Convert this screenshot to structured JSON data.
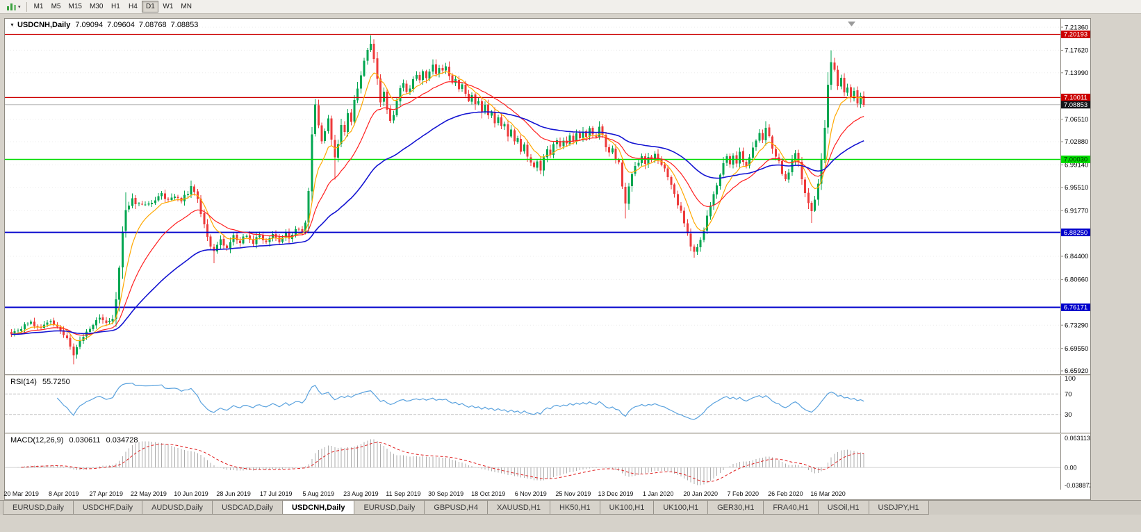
{
  "icons": {
    "collapse_arrow": "▼",
    "dropdown_arrow": "▾"
  },
  "toolbar": {
    "buttons": [
      {
        "label": "M1",
        "active": false
      },
      {
        "label": "M5",
        "active": false
      },
      {
        "label": "M15",
        "active": false
      },
      {
        "label": "M30",
        "active": false
      },
      {
        "label": "H1",
        "active": false
      },
      {
        "label": "H4",
        "active": false
      },
      {
        "label": "D1",
        "active": true
      },
      {
        "label": "W1",
        "active": false
      },
      {
        "label": "MN",
        "active": false
      }
    ]
  },
  "chart_header": {
    "title": "USDCNH,Daily",
    "open": "7.09094",
    "high": "7.09604",
    "low": "7.08768",
    "close": "7.08853"
  },
  "price_axis": {
    "ticks": [
      "7.21360",
      "7.17620",
      "7.13990",
      "7.06510",
      "7.02880",
      "6.99140",
      "6.95510",
      "6.91770",
      "6.84400",
      "6.80660",
      "6.73290",
      "6.69550",
      "6.65920"
    ],
    "badges": [
      {
        "text": "7.20193",
        "bg": "#cc0000",
        "fg": "#ffffff"
      },
      {
        "text": "7.10011",
        "bg": "#cc0000",
        "fg": "#ffffff"
      },
      {
        "text": "7.08853",
        "bg": "#15151a",
        "fg": "#ffffff"
      },
      {
        "text": "7.00030",
        "bg": "#00dc00",
        "fg": "#003300"
      },
      {
        "text": "6.88250",
        "bg": "#0000cc",
        "fg": "#ffffff"
      },
      {
        "text": "6.76171",
        "bg": "#0000cc",
        "fg": "#ffffff"
      }
    ]
  },
  "rsi": {
    "label": "RSI(14)",
    "value": "55.7250",
    "axis": [
      {
        "text": "100",
        "value": 100
      },
      {
        "text": "70",
        "value": 70
      },
      {
        "text": "30",
        "value": 30
      }
    ]
  },
  "macd": {
    "label": "MACD(12,26,9)",
    "value1": "0.030611",
    "value2": "0.034728",
    "axis": [
      {
        "text": "0.063113",
        "value": 0.063113
      },
      {
        "text": "0.00",
        "value": 0
      },
      {
        "text": "-0.038872",
        "value": -0.038872
      }
    ]
  },
  "tabs": [
    {
      "label": "EURUSD,Daily",
      "active": false
    },
    {
      "label": "USDCHF,Daily",
      "active": false
    },
    {
      "label": "AUDUSD,Daily",
      "active": false
    },
    {
      "label": "USDCAD,Daily",
      "active": false
    },
    {
      "label": "USDCNH,Daily",
      "active": true
    },
    {
      "label": "EURUSD,Daily",
      "active": false
    },
    {
      "label": "GBPUSD,H4",
      "active": false
    },
    {
      "label": "XAUUSD,H1",
      "active": false
    },
    {
      "label": "HK50,H1",
      "active": false
    },
    {
      "label": "UK100,H1",
      "active": false
    },
    {
      "label": "UK100,H1",
      "active": false
    },
    {
      "label": "GER30,H1",
      "active": false
    },
    {
      "label": "FRA40,H1",
      "active": false
    },
    {
      "label": "USOil,H1",
      "active": false
    },
    {
      "label": "USDJPY,H1",
      "active": false
    }
  ],
  "chart_data": {
    "type": "candlestick",
    "symbol": "USDCNH",
    "timeframe": "Daily",
    "candle_count": 262,
    "price_range": {
      "max": 7.2271,
      "min": 6.6536
    },
    "current_price": 7.08853,
    "y_axis_ticks": [
      "7.21360",
      "7.17620",
      "7.13990",
      "7.06510",
      "7.02880",
      "6.99140",
      "6.95510",
      "6.91770",
      "6.84400",
      "6.80660",
      "6.73290",
      "6.69550",
      "6.65920"
    ],
    "x_axis_dates": [
      "20 Mar 2019",
      "8 Apr 2019",
      "27 Apr 2019",
      "22 May 2019",
      "10 Jun 2019",
      "28 Jun 2019",
      "17 Jul 2019",
      "5 Aug 2019",
      "23 Aug 2019",
      "11 Sep 2019",
      "30 Sep 2019",
      "18 Oct 2019",
      "6 Nov 2019",
      "25 Nov 2019",
      "13 Dec 2019",
      "1 Jan 2020",
      "20 Jan 2020",
      "7 Feb 2020",
      "26 Feb 2020",
      "16 Mar 2020"
    ],
    "horizontal_lines": [
      {
        "price": 7.20193,
        "color": "#cc0000",
        "width": 1.3
      },
      {
        "price": 7.10011,
        "color": "#cc0000",
        "width": 1.3
      },
      {
        "price": 7.0003,
        "color": "#00dc00",
        "width": 1.6
      },
      {
        "price": 6.8825,
        "color": "#0000cc",
        "width": 1.9
      },
      {
        "price": 6.76171,
        "color": "#0000cc",
        "width": 1.9
      }
    ],
    "colors": {
      "bull": "#00a651",
      "bear": "#ed3a3a"
    },
    "moving_averages": [
      {
        "period": 8,
        "color": "#ffa800",
        "width": 1.2
      },
      {
        "period": 21,
        "color": "#ff2020",
        "width": 1.2
      },
      {
        "period": 55,
        "color": "#1414d2",
        "width": 1.6
      }
    ],
    "indicators": [
      {
        "name": "RSI",
        "period": 14,
        "current": 55.725,
        "levels": [
          70,
          30
        ]
      },
      {
        "name": "MACD",
        "params": [
          12,
          26,
          9
        ],
        "current": [
          0.030611,
          0.034728
        ],
        "axis_max": 0.063113,
        "axis_min": -0.038872
      }
    ],
    "price_path": [
      [
        0,
        6.718
      ],
      [
        2,
        6.726
      ],
      [
        4,
        6.732
      ],
      [
        6,
        6.737
      ],
      [
        8,
        6.727
      ],
      [
        10,
        6.733
      ],
      [
        12,
        6.741
      ],
      [
        14,
        6.73
      ],
      [
        16,
        6.718
      ],
      [
        18,
        6.701
      ],
      [
        19,
        6.684
      ],
      [
        20,
        6.695
      ],
      [
        21,
        6.707
      ],
      [
        23,
        6.722
      ],
      [
        25,
        6.734
      ],
      [
        27,
        6.746
      ],
      [
        29,
        6.738
      ],
      [
        31,
        6.743
      ],
      [
        32,
        6.772
      ],
      [
        33,
        6.828
      ],
      [
        34,
        6.884
      ],
      [
        35,
        6.917
      ],
      [
        36,
        6.928
      ],
      [
        37,
        6.937
      ],
      [
        38,
        6.925
      ],
      [
        40,
        6.931
      ],
      [
        42,
        6.927
      ],
      [
        44,
        6.936
      ],
      [
        46,
        6.944
      ],
      [
        48,
        6.934
      ],
      [
        50,
        6.943
      ],
      [
        52,
        6.935
      ],
      [
        54,
        6.947
      ],
      [
        55,
        6.957
      ],
      [
        56,
        6.949
      ],
      [
        57,
        6.934
      ],
      [
        58,
        6.914
      ],
      [
        59,
        6.895
      ],
      [
        60,
        6.876
      ],
      [
        61,
        6.86
      ],
      [
        62,
        6.85
      ],
      [
        63,
        6.862
      ],
      [
        64,
        6.871
      ],
      [
        65,
        6.86
      ],
      [
        66,
        6.855
      ],
      [
        67,
        6.868
      ],
      [
        68,
        6.879
      ],
      [
        69,
        6.871
      ],
      [
        70,
        6.866
      ],
      [
        71,
        6.874
      ],
      [
        72,
        6.879
      ],
      [
        73,
        6.871
      ],
      [
        74,
        6.866
      ],
      [
        75,
        6.872
      ],
      [
        76,
        6.878
      ],
      [
        77,
        6.871
      ],
      [
        78,
        6.867
      ],
      [
        79,
        6.874
      ],
      [
        80,
        6.879
      ],
      [
        81,
        6.873
      ],
      [
        82,
        6.869
      ],
      [
        83,
        6.875
      ],
      [
        84,
        6.881
      ],
      [
        85,
        6.875
      ],
      [
        86,
        6.879
      ],
      [
        87,
        6.885
      ],
      [
        88,
        6.889
      ],
      [
        89,
        6.884
      ],
      [
        90,
        6.897
      ],
      [
        91,
        6.948
      ],
      [
        92,
        7.042
      ],
      [
        93,
        7.088
      ],
      [
        94,
        7.057
      ],
      [
        95,
        7.027
      ],
      [
        96,
        7.047
      ],
      [
        97,
        7.066
      ],
      [
        98,
        7.034
      ],
      [
        99,
        7.001
      ],
      [
        100,
        7.024
      ],
      [
        101,
        7.057
      ],
      [
        102,
        7.047
      ],
      [
        103,
        7.077
      ],
      [
        104,
        7.063
      ],
      [
        105,
        7.093
      ],
      [
        106,
        7.112
      ],
      [
        107,
        7.136
      ],
      [
        108,
        7.161
      ],
      [
        109,
        7.179
      ],
      [
        110,
        7.189
      ],
      [
        111,
        7.163
      ],
      [
        112,
        7.128
      ],
      [
        113,
        7.093
      ],
      [
        114,
        7.107
      ],
      [
        115,
        7.079
      ],
      [
        116,
        7.061
      ],
      [
        117,
        7.071
      ],
      [
        118,
        7.093
      ],
      [
        119,
        7.113
      ],
      [
        120,
        7.121
      ],
      [
        121,
        7.107
      ],
      [
        122,
        7.117
      ],
      [
        123,
        7.127
      ],
      [
        124,
        7.139
      ],
      [
        125,
        7.127
      ],
      [
        126,
        7.141
      ],
      [
        127,
        7.131
      ],
      [
        128,
        7.143
      ],
      [
        129,
        7.151
      ],
      [
        130,
        7.139
      ],
      [
        131,
        7.149
      ],
      [
        132,
        7.141
      ],
      [
        133,
        7.149
      ],
      [
        134,
        7.135
      ],
      [
        135,
        7.121
      ],
      [
        136,
        7.129
      ],
      [
        137,
        7.111
      ],
      [
        138,
        7.121
      ],
      [
        139,
        7.105
      ],
      [
        140,
        7.097
      ],
      [
        141,
        7.105
      ],
      [
        142,
        7.087
      ],
      [
        143,
        7.095
      ],
      [
        144,
        7.079
      ],
      [
        145,
        7.087
      ],
      [
        146,
        7.069
      ],
      [
        147,
        7.077
      ],
      [
        148,
        7.061
      ],
      [
        149,
        7.069
      ],
      [
        150,
        7.051
      ],
      [
        151,
        7.059
      ],
      [
        152,
        7.039
      ],
      [
        153,
        7.047
      ],
      [
        154,
        7.027
      ],
      [
        155,
        7.035
      ],
      [
        156,
        7.015
      ],
      [
        157,
        7.023
      ],
      [
        158,
        7.003
      ],
      [
        159,
        6.995
      ],
      [
        160,
        6.987
      ],
      [
        161,
        6.997
      ],
      [
        162,
        6.981
      ],
      [
        163,
        7.003
      ],
      [
        164,
        7.017
      ],
      [
        165,
        7.007
      ],
      [
        166,
        7.023
      ],
      [
        167,
        7.031
      ],
      [
        168,
        7.019
      ],
      [
        169,
        7.033
      ],
      [
        170,
        7.023
      ],
      [
        171,
        7.037
      ],
      [
        172,
        7.029
      ],
      [
        173,
        7.043
      ],
      [
        174,
        7.035
      ],
      [
        175,
        7.047
      ],
      [
        176,
        7.037
      ],
      [
        177,
        7.051
      ],
      [
        178,
        7.041
      ],
      [
        179,
        7.035
      ],
      [
        180,
        7.051
      ],
      [
        181,
        7.039
      ],
      [
        182,
        7.021
      ],
      [
        183,
        7.009
      ],
      [
        184,
        7.019
      ],
      [
        185,
        7.003
      ],
      [
        186,
        6.993
      ],
      [
        187,
        6.957
      ],
      [
        188,
        6.929
      ],
      [
        189,
        6.959
      ],
      [
        190,
        6.979
      ],
      [
        191,
        6.989
      ],
      [
        192,
        6.997
      ],
      [
        193,
        7.005
      ],
      [
        194,
        6.995
      ],
      [
        195,
        7.007
      ],
      [
        196,
        6.997
      ],
      [
        197,
        7.009
      ],
      [
        198,
        6.999
      ],
      [
        199,
        6.991
      ],
      [
        200,
        6.983
      ],
      [
        201,
        6.971
      ],
      [
        202,
        6.959
      ],
      [
        203,
        6.943
      ],
      [
        204,
        6.929
      ],
      [
        205,
        6.915
      ],
      [
        206,
        6.899
      ],
      [
        207,
        6.881
      ],
      [
        208,
        6.861
      ],
      [
        209,
        6.849
      ],
      [
        210,
        6.857
      ],
      [
        211,
        6.871
      ],
      [
        212,
        6.887
      ],
      [
        213,
        6.907
      ],
      [
        214,
        6.927
      ],
      [
        215,
        6.945
      ],
      [
        216,
        6.961
      ],
      [
        217,
        6.977
      ],
      [
        218,
        6.993
      ],
      [
        219,
        7.005
      ],
      [
        220,
        6.991
      ],
      [
        221,
        7.009
      ],
      [
        222,
        6.995
      ],
      [
        223,
        7.013
      ],
      [
        224,
        6.999
      ],
      [
        225,
        6.987
      ],
      [
        226,
        7.001
      ],
      [
        227,
        7.017
      ],
      [
        228,
        7.029
      ],
      [
        229,
        7.041
      ],
      [
        230,
        7.029
      ],
      [
        231,
        7.049
      ],
      [
        232,
        7.035
      ],
      [
        233,
        7.019
      ],
      [
        234,
        7.007
      ],
      [
        235,
        6.995
      ],
      [
        236,
        6.979
      ],
      [
        237,
        6.967
      ],
      [
        238,
        6.981
      ],
      [
        239,
        6.997
      ],
      [
        240,
        7.011
      ],
      [
        241,
        6.995
      ],
      [
        242,
        6.971
      ],
      [
        243,
        6.947
      ],
      [
        244,
        6.927
      ],
      [
        245,
        6.915
      ],
      [
        246,
        6.937
      ],
      [
        247,
        6.963
      ],
      [
        248,
        6.999
      ],
      [
        249,
        7.053
      ],
      [
        250,
        7.119
      ],
      [
        251,
        7.159
      ],
      [
        252,
        7.143
      ],
      [
        253,
        7.119
      ],
      [
        254,
        7.133
      ],
      [
        255,
        7.109
      ],
      [
        256,
        7.119
      ],
      [
        257,
        7.099
      ],
      [
        258,
        7.111
      ],
      [
        259,
        7.091
      ],
      [
        260,
        7.101
      ],
      [
        261,
        7.0885
      ]
    ],
    "wick_overrides": [
      {
        "i": 19,
        "low": 6.67
      },
      {
        "i": 35,
        "high": 6.947
      },
      {
        "i": 55,
        "high": 6.966
      },
      {
        "i": 62,
        "low": 6.833
      },
      {
        "i": 92,
        "high": 7.052
      },
      {
        "i": 93,
        "high": 7.098
      },
      {
        "i": 99,
        "low": 6.968
      },
      {
        "i": 110,
        "high": 7.2
      },
      {
        "i": 180,
        "high": 7.062
      },
      {
        "i": 188,
        "low": 6.905
      },
      {
        "i": 209,
        "low": 6.842
      },
      {
        "i": 231,
        "high": 7.062
      },
      {
        "i": 245,
        "low": 6.898
      },
      {
        "i": 251,
        "high": 7.176
      }
    ]
  }
}
